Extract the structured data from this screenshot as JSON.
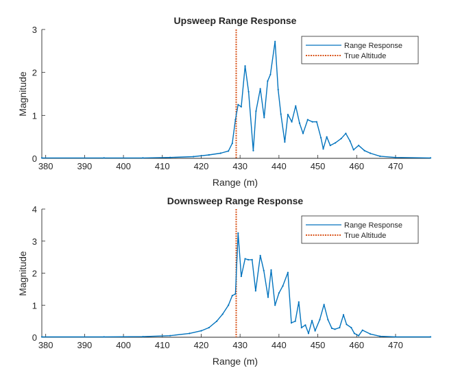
{
  "colors": {
    "response": "#0072BD",
    "altitude": "#D95319",
    "axis": "#262626"
  },
  "chart_data": [
    {
      "type": "line",
      "title": "Upsweep Range Response",
      "xlabel": "Range (m)",
      "ylabel": "Magnitude",
      "xlim": [
        379,
        479
      ],
      "ylim": [
        0,
        3
      ],
      "xticks": [
        380,
        390,
        400,
        410,
        420,
        430,
        440,
        450,
        460,
        470
      ],
      "yticks": [
        0,
        1,
        2,
        3
      ],
      "grid": false,
      "legend_position": "top-right",
      "legend": [
        "Range Response",
        "True Altitude"
      ],
      "true_altitude": 429,
      "series": [
        {
          "name": "Range Response",
          "x": [
            379,
            395,
            405,
            412,
            418,
            422,
            425,
            427,
            428,
            428.8,
            429.5,
            430.3,
            431.3,
            432.2,
            433.4,
            434.1,
            435.2,
            436.2,
            437.1,
            437.8,
            439,
            439.8,
            440.5,
            441.5,
            442.3,
            443.3,
            444.3,
            445.3,
            446.2,
            447.4,
            448.6,
            449.7,
            450.8,
            451.4,
            452.3,
            453.2,
            454.5,
            456,
            457.2,
            458.3,
            459.2,
            460.5,
            462,
            463.5,
            466,
            470,
            479
          ],
          "y": [
            0.01,
            0.01,
            0.01,
            0.02,
            0.04,
            0.08,
            0.12,
            0.17,
            0.35,
            0.9,
            1.25,
            1.2,
            2.15,
            1.55,
            0.18,
            1.1,
            1.62,
            0.95,
            1.8,
            1.95,
            2.72,
            1.6,
            1.03,
            0.38,
            1.02,
            0.85,
            1.22,
            0.82,
            0.58,
            0.9,
            0.85,
            0.85,
            0.48,
            0.22,
            0.5,
            0.3,
            0.36,
            0.46,
            0.58,
            0.4,
            0.2,
            0.3,
            0.18,
            0.12,
            0.05,
            0.02,
            0.01
          ]
        }
      ]
    },
    {
      "type": "line",
      "title": "Downsweep Range Response",
      "xlabel": "Range (m)",
      "ylabel": "Magnitude",
      "xlim": [
        379,
        479
      ],
      "ylim": [
        0,
        4
      ],
      "xticks": [
        380,
        390,
        400,
        410,
        420,
        430,
        440,
        450,
        460,
        470
      ],
      "yticks": [
        0,
        1,
        2,
        3,
        4
      ],
      "grid": false,
      "legend_position": "top-right",
      "legend": [
        "Range Response",
        "True Altitude"
      ],
      "true_altitude": 429,
      "series": [
        {
          "name": "Range Response",
          "x": [
            379,
            395,
            405,
            412,
            417,
            420,
            422,
            424,
            425.5,
            427,
            428,
            428.8,
            429.5,
            430.3,
            431.3,
            432.1,
            433.1,
            434,
            435.2,
            436.1,
            437.2,
            438,
            439,
            440,
            441,
            442.3,
            443.2,
            444.2,
            445.1,
            445.8,
            446.8,
            447.6,
            448.5,
            449.3,
            450.5,
            451.6,
            452.6,
            453.6,
            454.4,
            455.6,
            456.6,
            457.4,
            458.6,
            459.4,
            460.5,
            461.5,
            463.5,
            466,
            470,
            479
          ],
          "y": [
            0.01,
            0.01,
            0.02,
            0.05,
            0.12,
            0.2,
            0.3,
            0.5,
            0.72,
            1.0,
            1.3,
            1.35,
            3.25,
            1.9,
            2.45,
            2.42,
            2.42,
            1.45,
            2.55,
            2.08,
            1.25,
            2.1,
            1.0,
            1.38,
            1.6,
            2.02,
            0.45,
            0.5,
            1.1,
            0.3,
            0.38,
            0.12,
            0.52,
            0.2,
            0.55,
            1.02,
            0.55,
            0.28,
            0.25,
            0.3,
            0.7,
            0.4,
            0.3,
            0.12,
            0.05,
            0.22,
            0.1,
            0.03,
            0.01,
            0.01
          ]
        }
      ]
    }
  ]
}
